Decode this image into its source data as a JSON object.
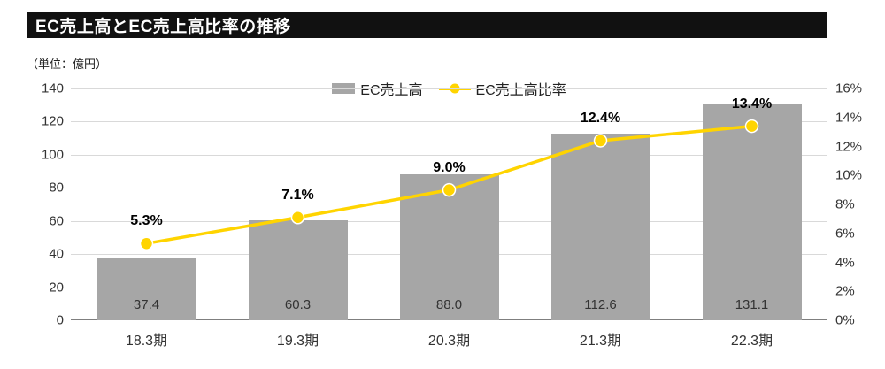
{
  "title": "EC売上高とEC売上高比率の推移",
  "unit_label": "（単位：億円）",
  "legend": {
    "bar_label": "EC売上高",
    "line_label": "EC売上高比率"
  },
  "colors": {
    "bar": "#a6a6a6",
    "line": "#ffd400",
    "title_bg": "#111111",
    "grid": "#d9d9d9",
    "axis": "#7f7f7f"
  },
  "chart_data": {
    "type": "bar",
    "subtype": "bar+line combo",
    "title": "EC売上高とEC売上高比率の推移",
    "categories": [
      "18.3期",
      "19.3期",
      "20.3期",
      "21.3期",
      "22.3期"
    ],
    "series": [
      {
        "name": "EC売上高",
        "type": "bar",
        "axis": "left",
        "values": [
          37.4,
          60.3,
          88.0,
          112.6,
          131.1
        ],
        "labels": [
          "37.4",
          "60.3",
          "88.0",
          "112.6",
          "131.1"
        ]
      },
      {
        "name": "EC売上高比率",
        "type": "line",
        "axis": "right",
        "values": [
          5.3,
          7.1,
          9.0,
          12.4,
          13.4
        ],
        "labels": [
          "5.3%",
          "7.1%",
          "9.0%",
          "12.4%",
          "13.4%"
        ]
      }
    ],
    "left_axis": {
      "min": 0,
      "max": 140,
      "step": 20,
      "ticks": [
        "0",
        "20",
        "40",
        "60",
        "80",
        "100",
        "120",
        "140"
      ]
    },
    "right_axis": {
      "min": 0,
      "max": 16,
      "step": 2,
      "ticks": [
        "0%",
        "2%",
        "4%",
        "6%",
        "8%",
        "10%",
        "12%",
        "14%",
        "16%"
      ]
    },
    "grid": true,
    "legend_position": "top"
  }
}
